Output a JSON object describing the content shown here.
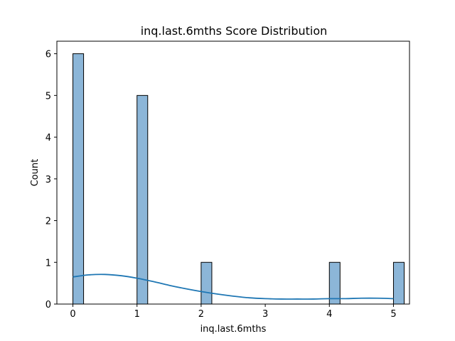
{
  "chart_data": {
    "type": "bar",
    "title": "inq.last.6mths Score Distribution",
    "xlabel": "inq.last.6mths",
    "ylabel": "Count",
    "xlim": [
      -0.25,
      5.25
    ],
    "ylim": [
      0,
      6.3
    ],
    "x_ticks": [
      0,
      1,
      2,
      3,
      4,
      5
    ],
    "y_ticks": [
      0,
      1,
      2,
      3,
      4,
      5,
      6
    ],
    "bin_width": 0.1667,
    "bars": [
      {
        "x": 0,
        "count": 6
      },
      {
        "x": 1,
        "count": 5
      },
      {
        "x": 2,
        "count": 1
      },
      {
        "x": 4,
        "count": 1
      },
      {
        "x": 5,
        "count": 1
      }
    ],
    "kde": {
      "x": [
        0,
        0.25,
        0.5,
        0.75,
        1,
        1.25,
        1.5,
        1.75,
        2,
        2.25,
        2.5,
        2.75,
        3,
        3.25,
        3.5,
        3.75,
        4,
        4.25,
        4.5,
        4.75,
        5
      ],
      "y": [
        0.65,
        0.7,
        0.71,
        0.68,
        0.62,
        0.54,
        0.45,
        0.37,
        0.3,
        0.24,
        0.19,
        0.15,
        0.13,
        0.12,
        0.12,
        0.12,
        0.13,
        0.13,
        0.14,
        0.14,
        0.13
      ]
    },
    "grid": false,
    "colors": {
      "bar": "#8cb6d8",
      "kde": "#1f77b4"
    }
  }
}
